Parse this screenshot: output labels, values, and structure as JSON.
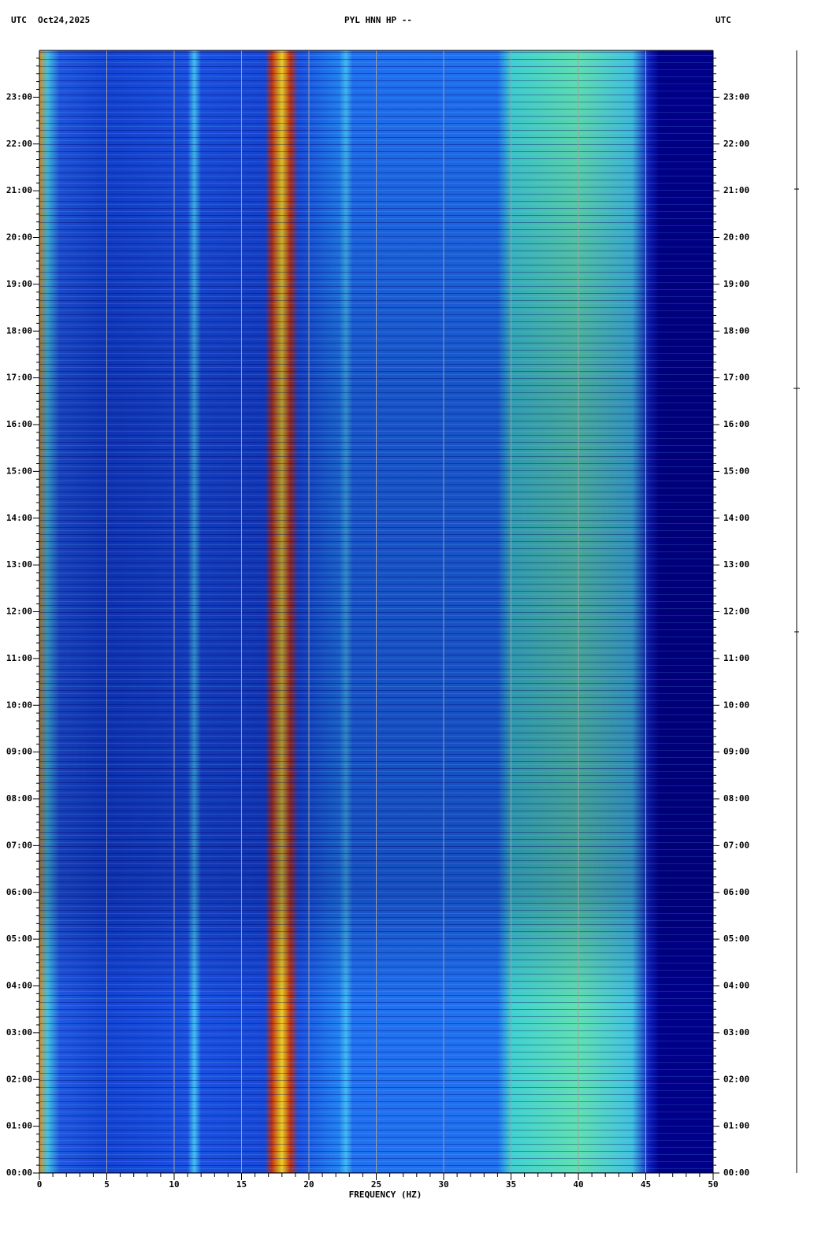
{
  "chart_data": {
    "type": "spectrogram",
    "title": "PYL HNN HP --",
    "left_label": "UTC",
    "date": "Oct24,2025",
    "right_label": "UTC",
    "xlabel": "FREQUENCY (HZ)",
    "xlim": [
      0,
      50
    ],
    "xticks": [
      0,
      5,
      10,
      15,
      20,
      25,
      30,
      35,
      40,
      45,
      50
    ],
    "ylim": [
      0,
      24
    ],
    "yticks": [
      {
        "value": 0,
        "label": "00:00"
      },
      {
        "value": 1,
        "label": "01:00"
      },
      {
        "value": 2,
        "label": "02:00"
      },
      {
        "value": 3,
        "label": "03:00"
      },
      {
        "value": 4,
        "label": "04:00"
      },
      {
        "value": 5,
        "label": "05:00"
      },
      {
        "value": 6,
        "label": "06:00"
      },
      {
        "value": 7,
        "label": "07:00"
      },
      {
        "value": 8,
        "label": "08:00"
      },
      {
        "value": 9,
        "label": "09:00"
      },
      {
        "value": 10,
        "label": "10:00"
      },
      {
        "value": 11,
        "label": "11:00"
      },
      {
        "value": 12,
        "label": "12:00"
      },
      {
        "value": 13,
        "label": "13:00"
      },
      {
        "value": 14,
        "label": "14:00"
      },
      {
        "value": 15,
        "label": "15:00"
      },
      {
        "value": 16,
        "label": "16:00"
      },
      {
        "value": 17,
        "label": "17:00"
      },
      {
        "value": 18,
        "label": "18:00"
      },
      {
        "value": 19,
        "label": "19:00"
      },
      {
        "value": 20,
        "label": "20:00"
      },
      {
        "value": 21,
        "label": "21:00"
      },
      {
        "value": 22,
        "label": "22:00"
      },
      {
        "value": 23,
        "label": "23:00"
      }
    ],
    "grid": true
  }
}
